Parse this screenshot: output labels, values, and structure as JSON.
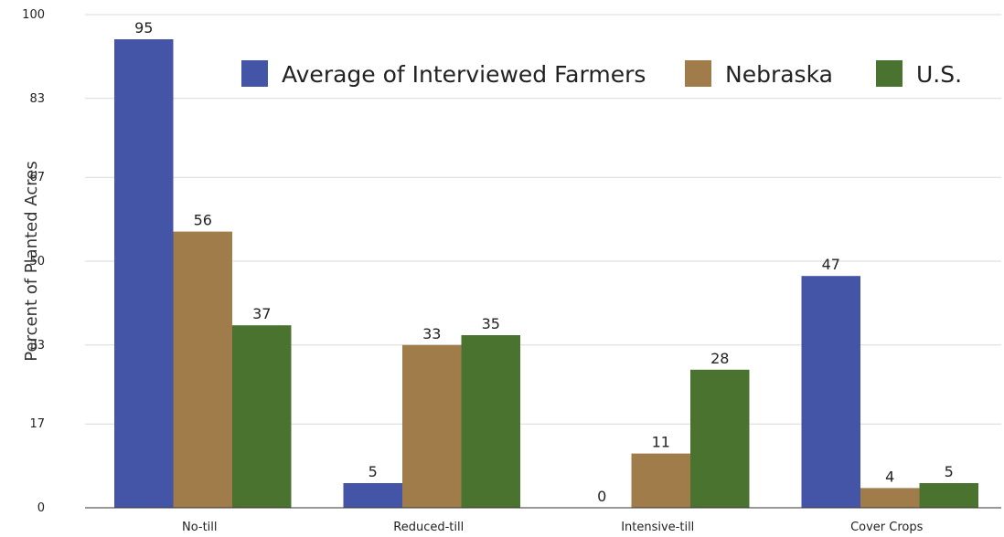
{
  "chart_data": {
    "type": "bar",
    "ylabel": "Percent of Planted Acres",
    "xlabel": "",
    "categories": [
      "No-till",
      "Reduced-till",
      "Intensive-till",
      "Cover Crops"
    ],
    "series": [
      {
        "name": "Average of Interviewed Farmers",
        "color": "#4454a7",
        "values": [
          95,
          5,
          0,
          47
        ]
      },
      {
        "name": "Nebraska",
        "color": "#a07c4b",
        "values": [
          56,
          33,
          11,
          4
        ]
      },
      {
        "name": "U.S.",
        "color": "#4b7330",
        "values": [
          37,
          35,
          28,
          5
        ]
      }
    ],
    "yticks": [
      0,
      17,
      33,
      50,
      67,
      83,
      100
    ],
    "ylim": [
      0,
      100
    ],
    "grid": true,
    "legend_position": "top-right"
  }
}
